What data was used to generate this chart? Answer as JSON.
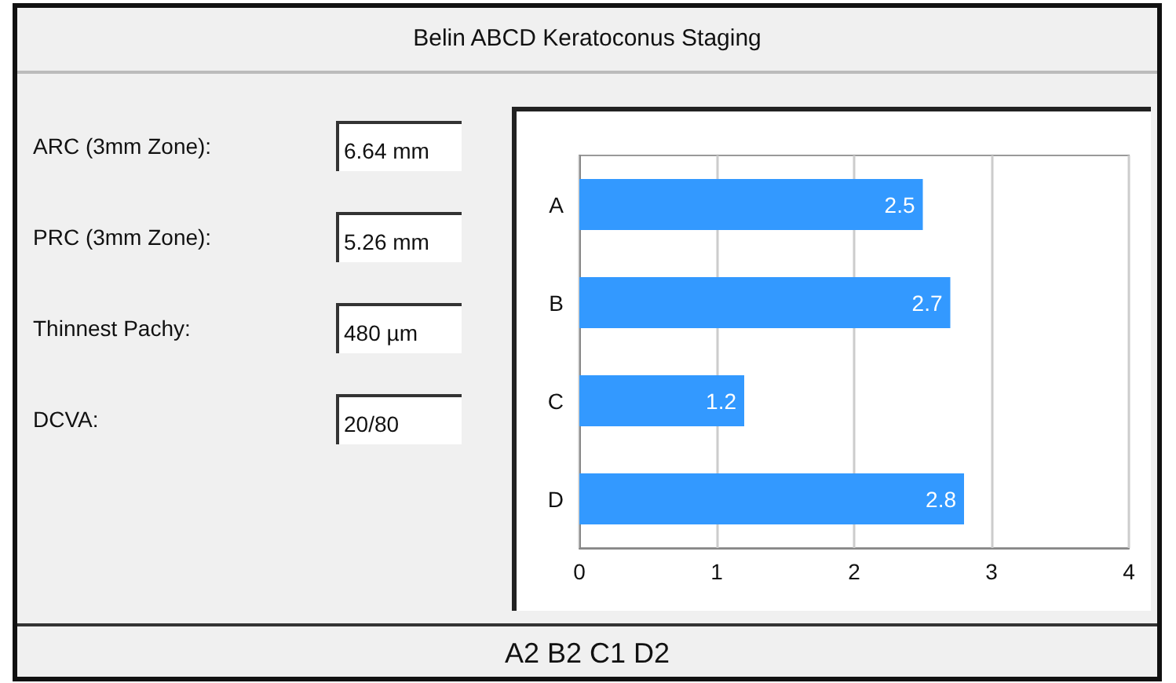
{
  "chart_data": {
    "type": "bar",
    "title": "Belin ABCD Keratoconus Staging",
    "orientation": "horizontal",
    "categories": [
      "A",
      "B",
      "C",
      "D"
    ],
    "values": [
      2.5,
      2.7,
      1.2,
      2.8
    ],
    "color": "#3399ff",
    "data_labels": true,
    "xlim": [
      0,
      4
    ],
    "xticks": [
      0,
      1,
      2,
      3,
      4
    ],
    "grid": "x",
    "annotations": [
      "ARC (3mm Zone):",
      "6.64 mm",
      "PRC (3mm Zone):",
      "5.26 mm",
      "Thinnest Pachy:",
      "480 µm",
      "DCVA:",
      "20/80",
      "A2 B2 C1 D2"
    ]
  }
}
